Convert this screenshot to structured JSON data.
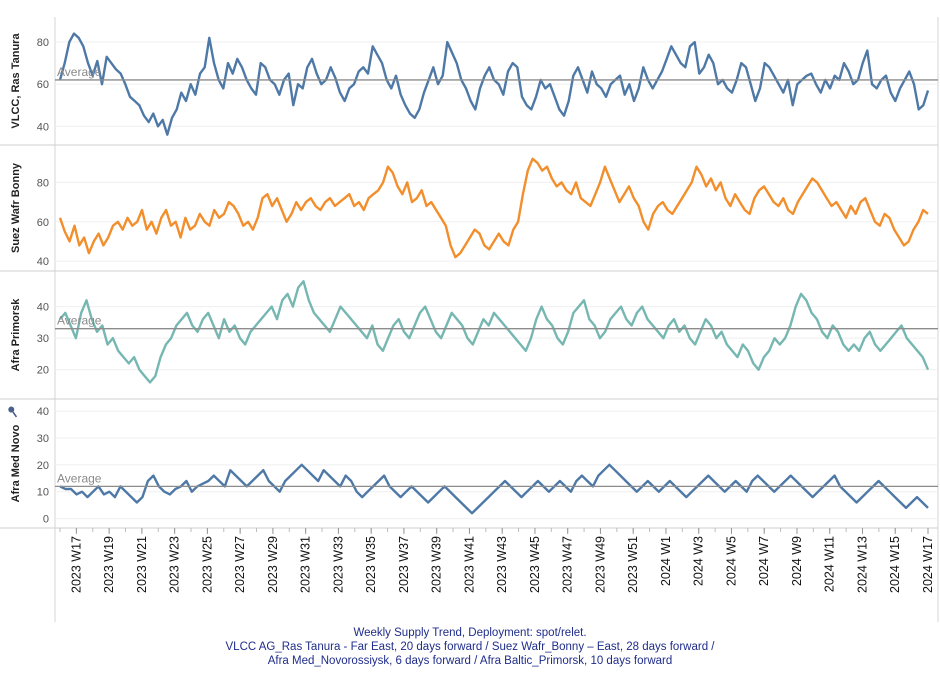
{
  "caption": {
    "line1": "Weekly Supply Trend, Deployment: spot/relet.",
    "line2": "VLCC AG_Ras Tanura - Far East, 20 days forward / Suez Wafr_Bonny – East, 28 days forward /",
    "line3": "Afra Med_Novorossiysk, 6 days forward / Afra Baltic_Primorsk, 10 days forward"
  },
  "average_label": "Average",
  "pin_icon": "pin-icon",
  "chart_data": {
    "type": "line",
    "x_ticks": [
      "2023 W17",
      "2023 W19",
      "2023 W21",
      "2023 W23",
      "2023 W25",
      "2023 W27",
      "2023 W29",
      "2023 W31",
      "2023 W33",
      "2023 W35",
      "2023 W37",
      "2023 W39",
      "2023 W41",
      "2023 W43",
      "2023 W45",
      "2023 W47",
      "2023 W49",
      "2023 W51",
      "2024 W1",
      "2024 W3",
      "2024 W5",
      "2024 W7",
      "2024 W9",
      "2024 W11",
      "2024 W13",
      "2024 W15",
      "2024 W17"
    ],
    "x_start_week": "2023 W16",
    "x_end_week": "2024 W17",
    "panels": [
      {
        "ylabel": "VLCC, Ras Tanura",
        "color": "#4e79a7",
        "ylim": [
          33,
          90
        ],
        "yticks": [
          40,
          60,
          80
        ],
        "average": 62,
        "show_average_label": true,
        "values": [
          62,
          70,
          80,
          84,
          82,
          78,
          70,
          64,
          71,
          60,
          73,
          70,
          67,
          65,
          60,
          54,
          52,
          50,
          45,
          42,
          46,
          40,
          43,
          36,
          44,
          48,
          56,
          52,
          60,
          55,
          65,
          68,
          82,
          70,
          62,
          58,
          70,
          65,
          72,
          68,
          62,
          58,
          55,
          70,
          68,
          62,
          60,
          55,
          62,
          65,
          50,
          60,
          58,
          68,
          72,
          65,
          60,
          62,
          68,
          63,
          56,
          52,
          58,
          60,
          66,
          68,
          65,
          78,
          74,
          70,
          62,
          58,
          64,
          55,
          50,
          46,
          44,
          48,
          56,
          62,
          68,
          60,
          64,
          80,
          75,
          70,
          62,
          58,
          52,
          48,
          58,
          64,
          68,
          62,
          60,
          55,
          66,
          70,
          68,
          54,
          50,
          48,
          54,
          62,
          58,
          60,
          54,
          48,
          45,
          52,
          64,
          68,
          62,
          56,
          66,
          60,
          58,
          54,
          60,
          62,
          64,
          55,
          60,
          52,
          58,
          68,
          62,
          58,
          62,
          66,
          72,
          78,
          74,
          70,
          68,
          78,
          80,
          65,
          68,
          74,
          70,
          60,
          62,
          58,
          56,
          62,
          70,
          68,
          60,
          52,
          58,
          70,
          68,
          64,
          60,
          56,
          62,
          50,
          60,
          62,
          64,
          65,
          60,
          56,
          62,
          58,
          64,
          62,
          70,
          66,
          60,
          62,
          70,
          76,
          60,
          58,
          62,
          64,
          56,
          52,
          58,
          62,
          66,
          60,
          48,
          50,
          57
        ]
      },
      {
        "ylabel": "Suez Wafr Bonny",
        "color": "#f28e2b",
        "ylim": [
          37,
          97
        ],
        "yticks": [
          40,
          60,
          80
        ],
        "average": null,
        "show_average_label": false,
        "values": [
          62,
          55,
          50,
          58,
          48,
          52,
          44,
          50,
          54,
          48,
          52,
          58,
          60,
          56,
          62,
          58,
          60,
          66,
          56,
          60,
          54,
          62,
          66,
          58,
          60,
          52,
          62,
          56,
          58,
          64,
          60,
          58,
          66,
          62,
          64,
          70,
          68,
          64,
          58,
          60,
          56,
          62,
          72,
          74,
          68,
          72,
          66,
          60,
          64,
          70,
          66,
          70,
          72,
          68,
          66,
          70,
          72,
          68,
          70,
          72,
          74,
          68,
          70,
          66,
          72,
          74,
          76,
          80,
          88,
          85,
          78,
          74,
          80,
          70,
          72,
          76,
          68,
          70,
          66,
          62,
          58,
          48,
          42,
          44,
          48,
          52,
          56,
          54,
          48,
          46,
          50,
          54,
          50,
          48,
          56,
          60,
          74,
          86,
          92,
          90,
          86,
          88,
          82,
          78,
          80,
          76,
          74,
          80,
          72,
          70,
          68,
          74,
          80,
          88,
          82,
          76,
          70,
          74,
          78,
          72,
          68,
          60,
          56,
          64,
          68,
          70,
          66,
          64,
          68,
          72,
          76,
          80,
          88,
          84,
          78,
          82,
          76,
          80,
          72,
          68,
          74,
          70,
          66,
          64,
          72,
          76,
          78,
          74,
          70,
          68,
          72,
          66,
          64,
          70,
          74,
          78,
          82,
          80,
          76,
          72,
          68,
          70,
          66,
          62,
          68,
          64,
          70,
          72,
          66,
          60,
          58,
          64,
          62,
          56,
          52,
          48,
          50,
          56,
          60,
          66,
          64
        ]
      },
      {
        "ylabel": "Afra Primorsk",
        "color": "#76b7b2",
        "ylim": [
          12,
          50
        ],
        "yticks": [
          20,
          30,
          40
        ],
        "average": 33,
        "show_average_label": true,
        "values": [
          36,
          38,
          34,
          30,
          38,
          42,
          36,
          32,
          34,
          28,
          30,
          26,
          24,
          22,
          24,
          20,
          18,
          16,
          18,
          24,
          28,
          30,
          34,
          36,
          38,
          34,
          32,
          36,
          38,
          34,
          30,
          36,
          32,
          34,
          30,
          28,
          32,
          34,
          36,
          38,
          40,
          36,
          42,
          44,
          40,
          46,
          48,
          42,
          38,
          36,
          34,
          32,
          36,
          40,
          38,
          36,
          34,
          32,
          30,
          34,
          28,
          26,
          30,
          34,
          36,
          32,
          30,
          34,
          38,
          40,
          36,
          32,
          30,
          34,
          38,
          36,
          34,
          30,
          28,
          32,
          36,
          34,
          38,
          36,
          34,
          32,
          30,
          28,
          26,
          30,
          36,
          40,
          36,
          34,
          30,
          28,
          32,
          38,
          40,
          42,
          36,
          34,
          30,
          32,
          36,
          38,
          40,
          36,
          34,
          38,
          40,
          36,
          34,
          32,
          30,
          34,
          36,
          32,
          34,
          30,
          28,
          32,
          36,
          34,
          30,
          32,
          28,
          26,
          24,
          28,
          26,
          22,
          20,
          24,
          26,
          30,
          28,
          30,
          34,
          40,
          44,
          42,
          38,
          36,
          32,
          30,
          34,
          32,
          28,
          26,
          28,
          26,
          30,
          32,
          28,
          26,
          28,
          30,
          32,
          34,
          30,
          28,
          26,
          24,
          20
        ]
      },
      {
        "ylabel": "Afra Med Novo",
        "color": "#4e79a7",
        "ylim": [
          -2,
          43
        ],
        "yticks": [
          0,
          10,
          20,
          30,
          40
        ],
        "average": 12,
        "show_average_label": true,
        "values": [
          12,
          11,
          11,
          9,
          10,
          8,
          10,
          12,
          9,
          10,
          8,
          12,
          10,
          8,
          6,
          8,
          14,
          16,
          12,
          10,
          9,
          11,
          12,
          14,
          10,
          12,
          13,
          14,
          16,
          14,
          12,
          18,
          16,
          14,
          12,
          14,
          16,
          18,
          14,
          12,
          10,
          14,
          16,
          18,
          20,
          18,
          16,
          14,
          18,
          16,
          14,
          12,
          16,
          14,
          10,
          8,
          10,
          12,
          14,
          16,
          12,
          10,
          8,
          10,
          12,
          10,
          8,
          6,
          8,
          10,
          12,
          10,
          8,
          6,
          4,
          2,
          4,
          6,
          8,
          10,
          12,
          14,
          12,
          10,
          8,
          10,
          12,
          14,
          12,
          10,
          12,
          14,
          12,
          10,
          14,
          16,
          14,
          12,
          16,
          18,
          20,
          18,
          16,
          14,
          12,
          10,
          12,
          14,
          12,
          10,
          12,
          14,
          12,
          10,
          8,
          10,
          12,
          14,
          16,
          14,
          12,
          10,
          12,
          14,
          12,
          10,
          14,
          16,
          14,
          12,
          10,
          12,
          14,
          16,
          14,
          12,
          10,
          8,
          10,
          12,
          14,
          16,
          12,
          10,
          8,
          6,
          8,
          10,
          12,
          14,
          12,
          10,
          8,
          6,
          4,
          6,
          8,
          6,
          4
        ]
      }
    ]
  }
}
